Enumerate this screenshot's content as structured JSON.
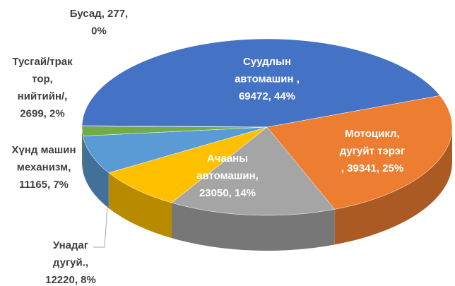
{
  "chart_data": {
    "type": "pie3d",
    "categories": [
      "Суудлын автомашин",
      "Мотоцикл, дугуйт тэрэг",
      "Ачааны автомашин",
      "Унадаг дугуй.",
      "Хүнд машин механизм",
      "Тусгай/трактор, нийтийн/",
      "Бусад"
    ],
    "values": [
      69472,
      39341,
      23050,
      12220,
      11165,
      2699,
      277
    ],
    "value_labels": [
      [
        "Суудлын",
        "автомашин ,",
        "69472, 44%"
      ],
      [
        "Мотоцикл,",
        "дугуйт тэрэг",
        ", 39341, 25%"
      ],
      [
        "Ачааны",
        "автомашин,",
        "23050, 14%"
      ],
      [
        "Унадаг",
        "дугуй.,",
        "12220, 8%"
      ],
      [
        "Хүнд машин",
        "механизм,",
        "11165, 7%"
      ],
      [
        "Тусгай/трак",
        "тор,",
        "нийтийн/,",
        "2699, 2%"
      ],
      [
        "Бусад, 277,",
        "0%"
      ]
    ],
    "colors": [
      "#4472c4",
      "#ed7d31",
      "#a5a5a5",
      "#ffc000",
      "#5b9bd5",
      "#70ad47",
      "#264478"
    ]
  }
}
